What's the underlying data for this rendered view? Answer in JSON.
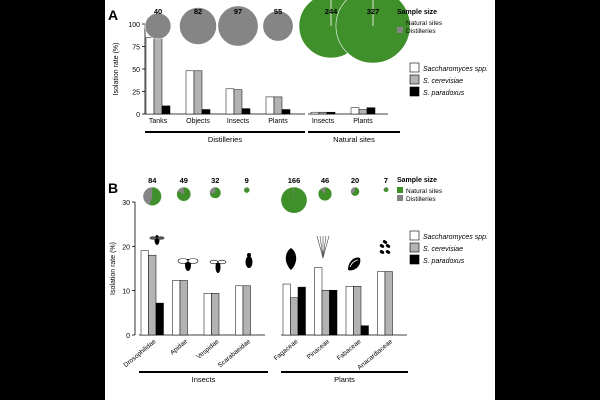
{
  "chart_data": [
    {
      "panel": "A",
      "type": "bar",
      "ylabel": "Isolation rate (%)",
      "ylim": [
        0,
        100
      ],
      "yticks": [
        0,
        25,
        50,
        75,
        100
      ],
      "groups": [
        {
          "label": "Distilleries",
          "categories": [
            "Tanks",
            "Objects",
            "Insects",
            "Plants"
          ],
          "sample_sizes": [
            40,
            82,
            97,
            55
          ],
          "natural_fraction": [
            0,
            0,
            0,
            0
          ],
          "series": [
            {
              "name": "Saccharomyces spp.",
              "values": [
                85,
                48,
                28,
                19
              ]
            },
            {
              "name": "S. cerevisiae",
              "values": [
                85,
                48,
                27,
                19
              ]
            },
            {
              "name": "S. paradoxus",
              "values": [
                9,
                5,
                6,
                5
              ]
            }
          ]
        },
        {
          "label": "Natural sites",
          "categories": [
            "Insects",
            "Plants"
          ],
          "sample_sizes": [
            244,
            327
          ],
          "natural_fraction": [
            1,
            1
          ],
          "series": [
            {
              "name": "Saccharomyces spp.",
              "values": [
                2,
                7
              ]
            },
            {
              "name": "S. cerevisiae",
              "values": [
                2,
                5
              ]
            },
            {
              "name": "S. paradoxus",
              "values": [
                2,
                7
              ]
            }
          ]
        }
      ]
    },
    {
      "panel": "B",
      "type": "bar",
      "ylabel": "Isolation rate (%)",
      "ylim": [
        0,
        30
      ],
      "yticks": [
        0,
        10,
        20,
        30
      ],
      "groups": [
        {
          "label": "Insects",
          "categories": [
            "Drosophilidae",
            "Apidae",
            "Vespidae",
            "Scarabaeidae"
          ],
          "sample_sizes": [
            84,
            49,
            32,
            9
          ],
          "natural_fraction": [
            0.55,
            0.82,
            0.72,
            0.9
          ],
          "series": [
            {
              "name": "Saccharomyces spp.",
              "values": [
                19,
                12.3,
                9.4,
                11.1
              ]
            },
            {
              "name": "S. cerevisiae",
              "values": [
                18,
                12.3,
                9.4,
                11.1
              ]
            },
            {
              "name": "S. paradoxus",
              "values": [
                7.2,
                0,
                0,
                0
              ]
            }
          ]
        },
        {
          "label": "Plants",
          "categories": [
            "Fagaceae",
            "Pinaceae",
            "Fabaceae",
            "Anacardiaceae"
          ],
          "sample_sizes": [
            166,
            46,
            20,
            7
          ],
          "natural_fraction": [
            0.99,
            0.88,
            0.65,
            0.86
          ],
          "series": [
            {
              "name": "Saccharomyces spp.",
              "values": [
                11.5,
                15.2,
                11,
                14.3
              ]
            },
            {
              "name": "S. cerevisiae",
              "values": [
                8.4,
                10.1,
                11,
                14.3
              ]
            },
            {
              "name": "S. paradoxus",
              "values": [
                10.8,
                10.1,
                2.1,
                0
              ]
            }
          ]
        }
      ]
    }
  ],
  "legend": {
    "sample_size_title": "Sample size",
    "natural_sites": "Natural sites",
    "distilleries": "Distilleries",
    "species": [
      "Saccharomyces spp.",
      "S. cerevisiae",
      "S. paradoxus"
    ]
  },
  "colors": {
    "natural": "#3f8f2b",
    "distillery": "#858585",
    "spp": "#ffffff",
    "cerevisiae": "#b3b3b3",
    "paradoxus": "#000000"
  },
  "icons": {
    "insects": [
      "fly-icon",
      "bee-icon",
      "wasp-icon",
      "beetle-icon"
    ],
    "plants": [
      "oak-leaf-icon",
      "pine-needles-icon",
      "pea-pod-icon",
      "compound-leaf-icon"
    ]
  },
  "panel_labels": [
    "A",
    "B"
  ]
}
